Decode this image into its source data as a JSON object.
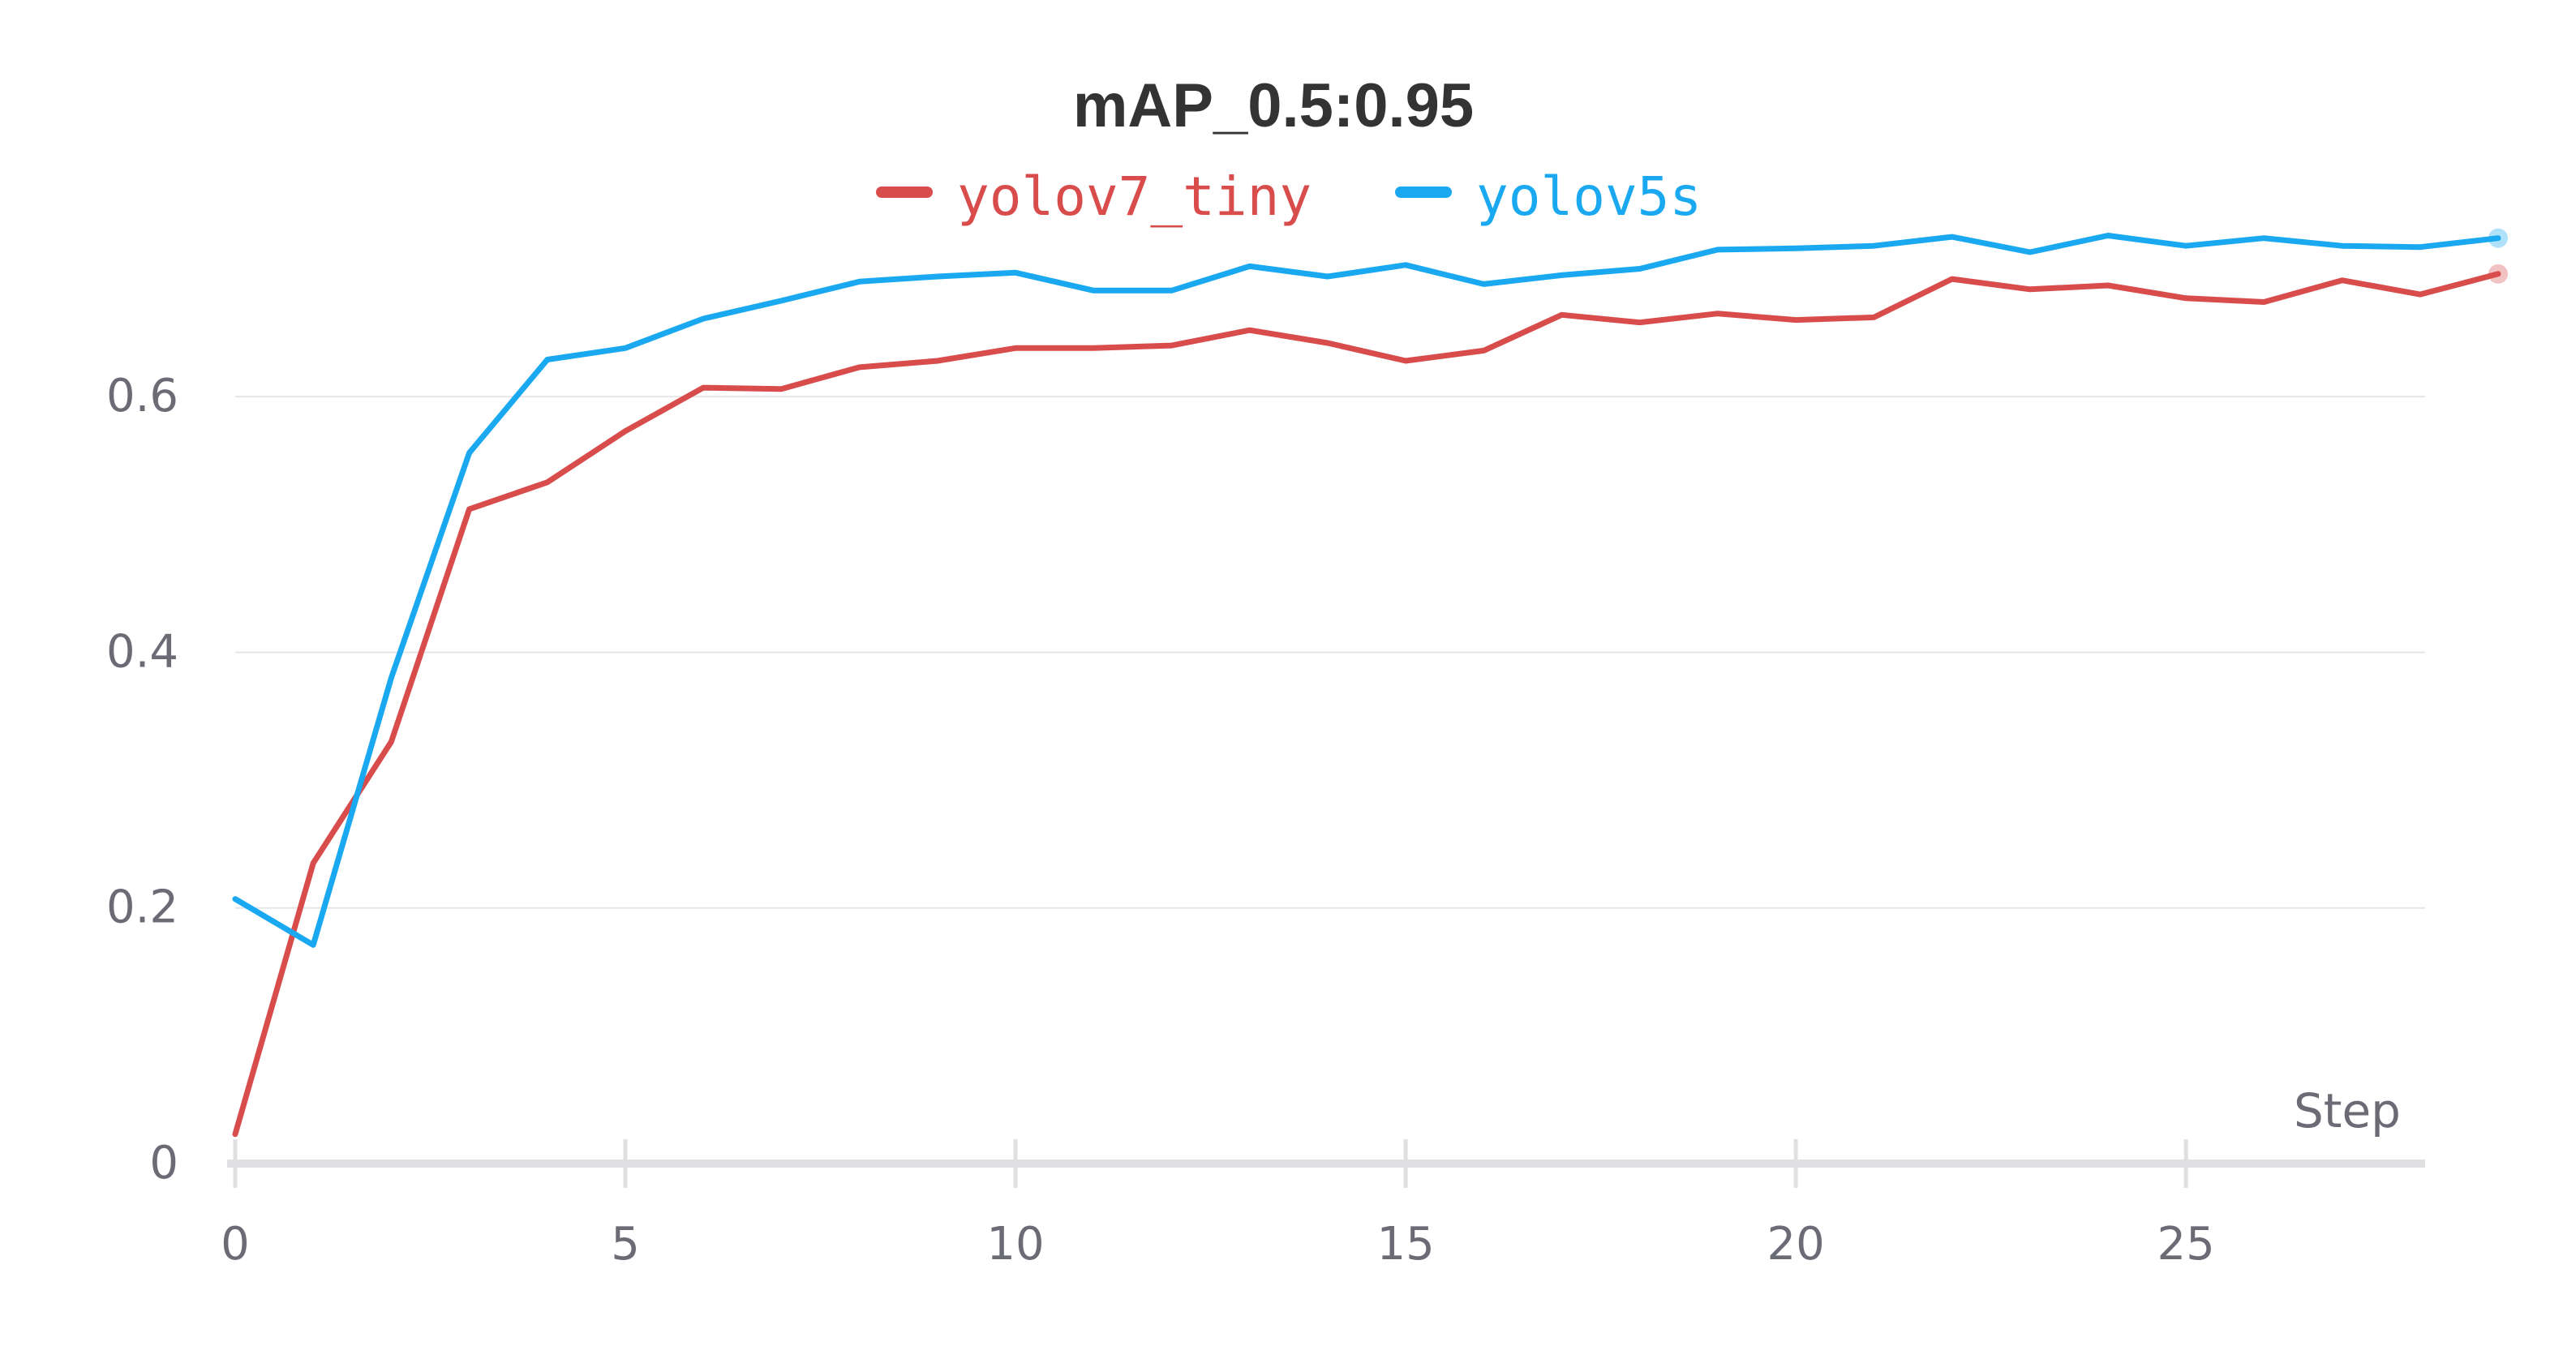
{
  "chart_data": {
    "type": "line",
    "title": "mAP_0.5:0.95",
    "xlabel": "Step",
    "ylabel": "",
    "xlim": [
      0,
      29
    ],
    "ylim": [
      0,
      0.72
    ],
    "x_ticks": [
      0,
      5,
      10,
      15,
      20,
      25
    ],
    "y_ticks": [
      0,
      0.2,
      0.4,
      0.6
    ],
    "y_tick_labels": [
      "0",
      "0.2",
      "0.4",
      "0.6"
    ],
    "x_tick_labels": [
      "0",
      "5",
      "10",
      "15",
      "20",
      "25"
    ],
    "grid": "horizontal",
    "legend_position": "top-center",
    "x": [
      0,
      1,
      2,
      3,
      4,
      5,
      6,
      7,
      8,
      9,
      10,
      11,
      12,
      13,
      14,
      15,
      16,
      17,
      18,
      19,
      20,
      21,
      22,
      23,
      24,
      25,
      26,
      27,
      28,
      29
    ],
    "series": [
      {
        "name": "yolov7_tiny",
        "color": "#d94c4c",
        "values": [
          0.023,
          0.235,
          0.33,
          0.512,
          0.533,
          0.573,
          0.607,
          0.606,
          0.623,
          0.628,
          0.638,
          0.638,
          0.64,
          0.652,
          0.642,
          0.628,
          0.636,
          0.664,
          0.658,
          0.665,
          0.66,
          0.662,
          0.692,
          0.684,
          0.687,
          0.677,
          0.674,
          0.691,
          0.68,
          0.696
        ]
      },
      {
        "name": "yolov5s",
        "color": "#1aa9f0",
        "values": [
          0.207,
          0.171,
          0.38,
          0.556,
          0.629,
          0.638,
          0.661,
          0.675,
          0.69,
          0.694,
          0.697,
          0.683,
          0.683,
          0.702,
          0.694,
          0.703,
          0.688,
          0.695,
          0.7,
          0.715,
          0.716,
          0.718,
          0.725,
          0.713,
          0.726,
          0.718,
          0.724,
          0.718,
          0.717,
          0.724
        ]
      }
    ]
  }
}
